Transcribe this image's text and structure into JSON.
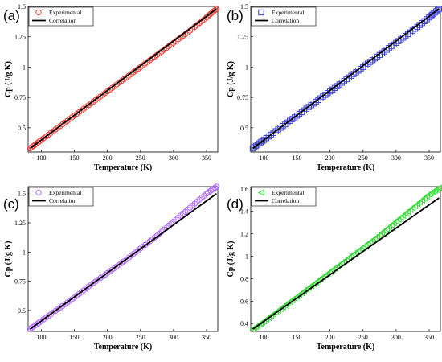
{
  "chart_data": [
    {
      "type": "scatter",
      "panel": "(a)",
      "xlabel": "Temperature (K)",
      "ylabel": "Cp (J/g K)",
      "xlim": [
        80,
        367
      ],
      "ylim": [
        0.3,
        1.5
      ],
      "xticks": [
        100,
        150,
        200,
        250,
        300,
        350
      ],
      "yticks": [
        0.5,
        0.75,
        1,
        1.25,
        1.5
      ],
      "ytick_labels": [
        "0.5",
        "0.75",
        "1",
        "1.25",
        "1.5"
      ],
      "legend": {
        "position": "top-left",
        "entries": [
          "Experimental",
          "Correlation"
        ]
      },
      "series": [
        {
          "name": "Experimental",
          "kind": "points",
          "marker": "circle",
          "color": "#e8453c",
          "x": [
            83,
            100,
            125,
            150,
            175,
            200,
            225,
            250,
            275,
            300,
            325,
            350,
            365
          ],
          "y": [
            0.33,
            0.4,
            0.5,
            0.6,
            0.7,
            0.8,
            0.9,
            1.0,
            1.1,
            1.2,
            1.3,
            1.41,
            1.48
          ]
        },
        {
          "name": "Correlation",
          "kind": "line",
          "color": "#000000",
          "x": [
            83,
            365
          ],
          "y": [
            0.33,
            1.48
          ]
        }
      ]
    },
    {
      "type": "scatter",
      "panel": "(b)",
      "xlabel": "Temperature (K)",
      "ylabel": "Cp (J/g K)",
      "xlim": [
        80,
        367
      ],
      "ylim": [
        0.3,
        1.5
      ],
      "xticks": [
        100,
        150,
        200,
        250,
        300,
        350
      ],
      "yticks": [
        0.5,
        0.75,
        1,
        1.25,
        1.5
      ],
      "ytick_labels": [
        "0.5",
        "0.75",
        "1",
        "1.25",
        "1.5"
      ],
      "legend": {
        "position": "top-left",
        "entries": [
          "Experimental",
          "Correlation"
        ]
      },
      "series": [
        {
          "name": "Experimental",
          "kind": "points",
          "marker": "square",
          "color": "#3c3fd6",
          "x": [
            83,
            100,
            125,
            150,
            175,
            200,
            225,
            250,
            275,
            300,
            325,
            350,
            365
          ],
          "y": [
            0.33,
            0.4,
            0.5,
            0.6,
            0.7,
            0.8,
            0.9,
            1.0,
            1.1,
            1.2,
            1.3,
            1.41,
            1.48
          ]
        },
        {
          "name": "Correlation",
          "kind": "line",
          "color": "#000000",
          "x": [
            83,
            365
          ],
          "y": [
            0.33,
            1.48
          ]
        }
      ]
    },
    {
      "type": "scatter",
      "panel": "(c)",
      "xlabel": "Temperature (K)",
      "ylabel": "Cp (J/g K)",
      "xlim": [
        80,
        367
      ],
      "ylim": [
        0.32,
        1.56
      ],
      "xticks": [
        100,
        150,
        200,
        250,
        300,
        350
      ],
      "yticks": [
        0.5,
        0.75,
        1,
        1.25,
        1.5
      ],
      "ytick_labels": [
        "0.5",
        "0.75",
        "1",
        "1.25",
        "1.5"
      ],
      "legend": {
        "position": "top-left",
        "entries": [
          "Experimental",
          "Correlation"
        ]
      },
      "series": [
        {
          "name": "Experimental",
          "kind": "points",
          "marker": "circle",
          "color": "#b26ef5",
          "x": [
            83,
            100,
            125,
            150,
            175,
            200,
            225,
            250,
            275,
            300,
            325,
            350,
            365
          ],
          "y": [
            0.34,
            0.41,
            0.51,
            0.61,
            0.72,
            0.82,
            0.92,
            1.03,
            1.14,
            1.26,
            1.38,
            1.5,
            1.56
          ]
        },
        {
          "name": "Correlation",
          "kind": "line",
          "color": "#000000",
          "x": [
            83,
            365
          ],
          "y": [
            0.34,
            1.5
          ]
        }
      ]
    },
    {
      "type": "scatter",
      "panel": "(d)",
      "xlabel": "Temperature (K)",
      "ylabel": "Cp (J/g K)",
      "xlim": [
        80,
        367
      ],
      "ylim": [
        0.33,
        1.62
      ],
      "xticks": [
        100,
        150,
        200,
        250,
        300,
        350
      ],
      "yticks": [
        0.4,
        0.6,
        0.8,
        1,
        1.2,
        1.4,
        1.6
      ],
      "ytick_labels": [
        "0.4",
        "0.6",
        "0.8",
        "1",
        "1.2",
        "1.4",
        "1.6"
      ],
      "legend": {
        "position": "top-left",
        "entries": [
          "Experimental",
          "Correlation"
        ]
      },
      "series": [
        {
          "name": "Experimental",
          "kind": "points",
          "marker": "triangle-left",
          "color": "#35d93a",
          "x": [
            83,
            100,
            125,
            150,
            175,
            200,
            225,
            250,
            275,
            300,
            325,
            350,
            365
          ],
          "y": [
            0.35,
            0.42,
            0.53,
            0.64,
            0.75,
            0.86,
            0.97,
            1.08,
            1.19,
            1.31,
            1.43,
            1.55,
            1.61
          ]
        },
        {
          "name": "Correlation",
          "kind": "line",
          "color": "#000000",
          "x": [
            83,
            365
          ],
          "y": [
            0.35,
            1.52
          ]
        }
      ]
    }
  ]
}
